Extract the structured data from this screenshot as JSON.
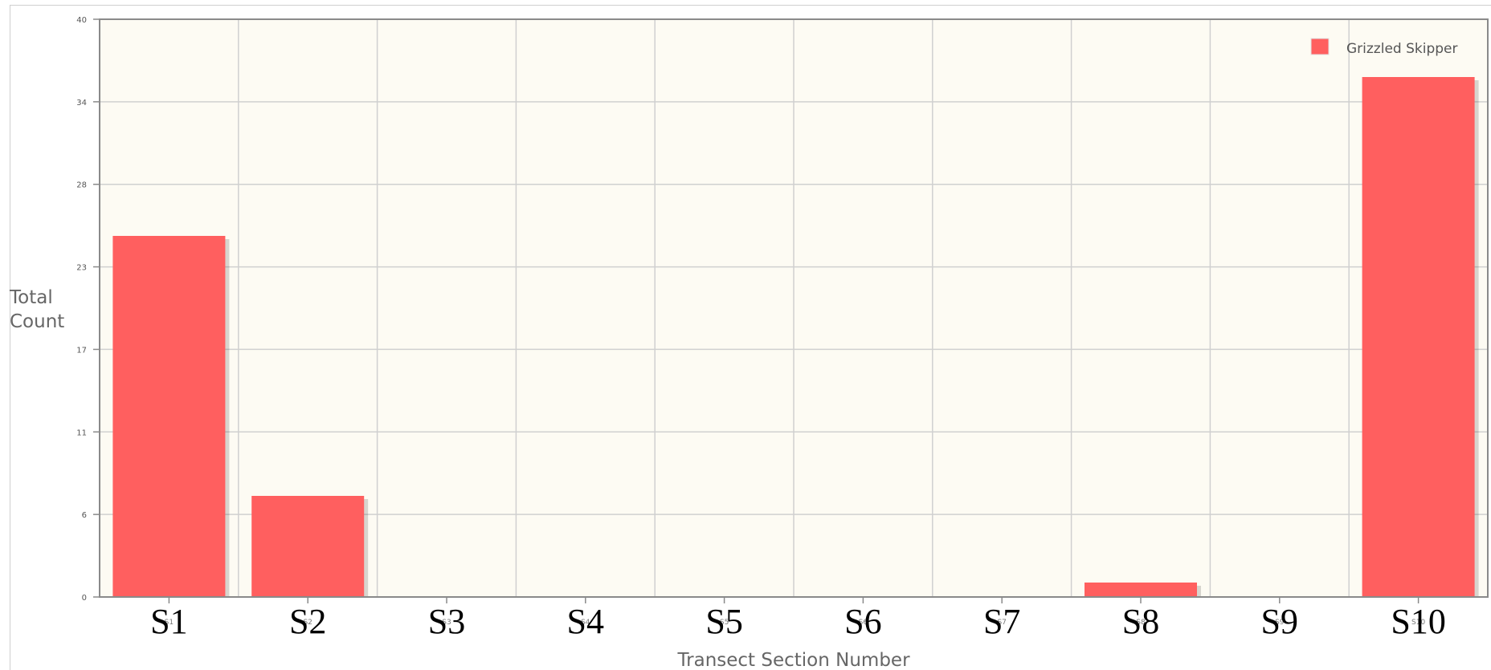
{
  "chart_data": {
    "type": "bar",
    "xlabel": "Transect Section Number",
    "ylabel": "Total Count",
    "categories": [
      "S1",
      "S2",
      "S3",
      "S4",
      "S5",
      "S6",
      "S7",
      "S8",
      "S9",
      "S10"
    ],
    "series": [
      {
        "name": "Grizzled Skipper",
        "values": [
          25,
          7,
          0,
          0,
          0,
          0,
          0,
          1,
          0,
          36
        ],
        "color": "#ff5f5f"
      }
    ],
    "ylim": [
      0,
      40
    ],
    "yticks": [
      "0",
      "6",
      "11",
      "17",
      "23",
      "28",
      "34",
      "40"
    ],
    "grid": true,
    "legend_position": "top-right",
    "plot_background": "#fdfbf3",
    "grid_color": "#d0d0d0"
  }
}
